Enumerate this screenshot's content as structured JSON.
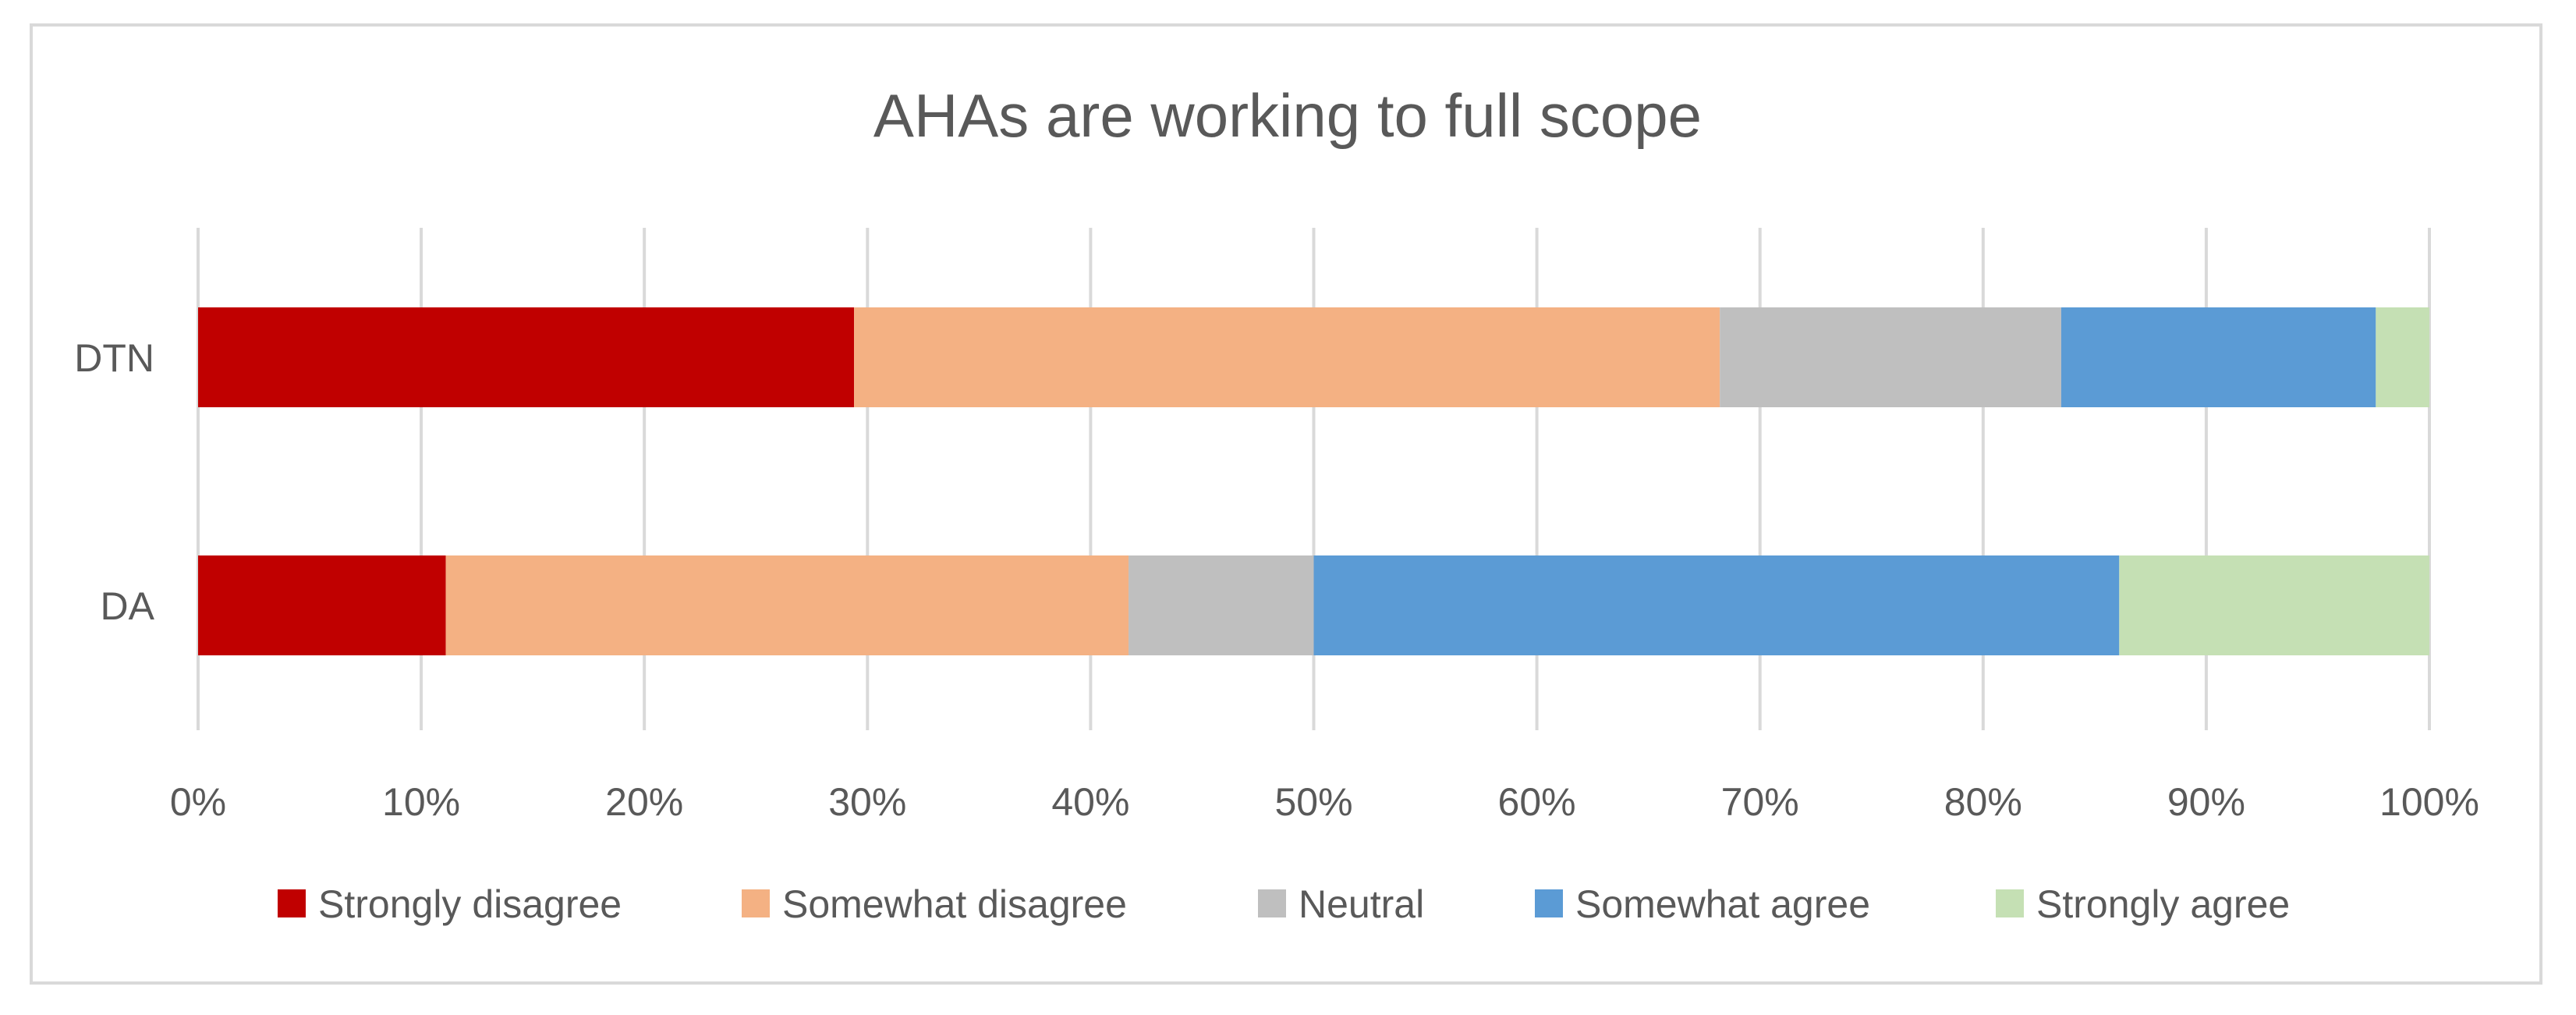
{
  "chart_data": {
    "type": "bar",
    "orientation": "horizontal",
    "stacked": "100%",
    "title": "AHAs are working to full scope",
    "xlabel": "",
    "ylabel": "",
    "xlim": [
      0,
      100
    ],
    "x_ticks": [
      "0%",
      "10%",
      "20%",
      "30%",
      "40%",
      "50%",
      "60%",
      "70%",
      "80%",
      "90%",
      "100%"
    ],
    "categories": [
      "DTN",
      "DA"
    ],
    "series": [
      {
        "name": "Strongly disagree",
        "color": "#C00000",
        "values": [
          29.4,
          11.1
        ]
      },
      {
        "name": "Somewhat disagree",
        "color": "#F4B183",
        "values": [
          38.8,
          30.6
        ]
      },
      {
        "name": "Neutral",
        "color": "#BFBFBF",
        "values": [
          15.3,
          8.3
        ]
      },
      {
        "name": "Somewhat agree",
        "color": "#5B9BD5",
        "values": [
          14.1,
          36.1
        ]
      },
      {
        "name": "Strongly agree",
        "color": "#C5E0B4",
        "values": [
          2.4,
          13.9
        ]
      }
    ],
    "grid": true,
    "legend_position": "bottom"
  }
}
